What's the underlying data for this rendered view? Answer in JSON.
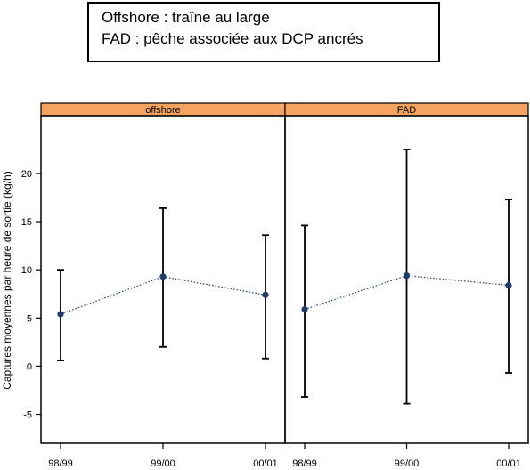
{
  "legend": {
    "line1": "Offshore : traîne au large",
    "line2": "FAD : pêche associée aux DCP ancrés"
  },
  "chart_data": {
    "type": "scatter",
    "ylabel": "Captures moyennes par heure de sortie (kg/h)",
    "xlabel": "",
    "ylim": [
      -8,
      26
    ],
    "yticks": [
      "-5",
      "0",
      "5",
      "10",
      "15",
      "20"
    ],
    "categories": [
      "98/99",
      "99/00",
      "00/01"
    ],
    "panels": [
      {
        "name": "offshore",
        "mean": [
          5.4,
          9.3,
          7.4
        ],
        "lower": [
          0.6,
          2.0,
          0.8
        ],
        "upper": [
          10.0,
          16.4,
          13.6
        ]
      },
      {
        "name": "FAD",
        "mean": [
          5.9,
          9.4,
          8.4
        ],
        "lower": [
          -3.2,
          -3.9,
          -0.7
        ],
        "upper": [
          14.6,
          22.5,
          17.3
        ]
      }
    ],
    "colors": {
      "strip": "#f4a460",
      "point": "#1f3a6b",
      "line": "#1f3a6b"
    }
  }
}
